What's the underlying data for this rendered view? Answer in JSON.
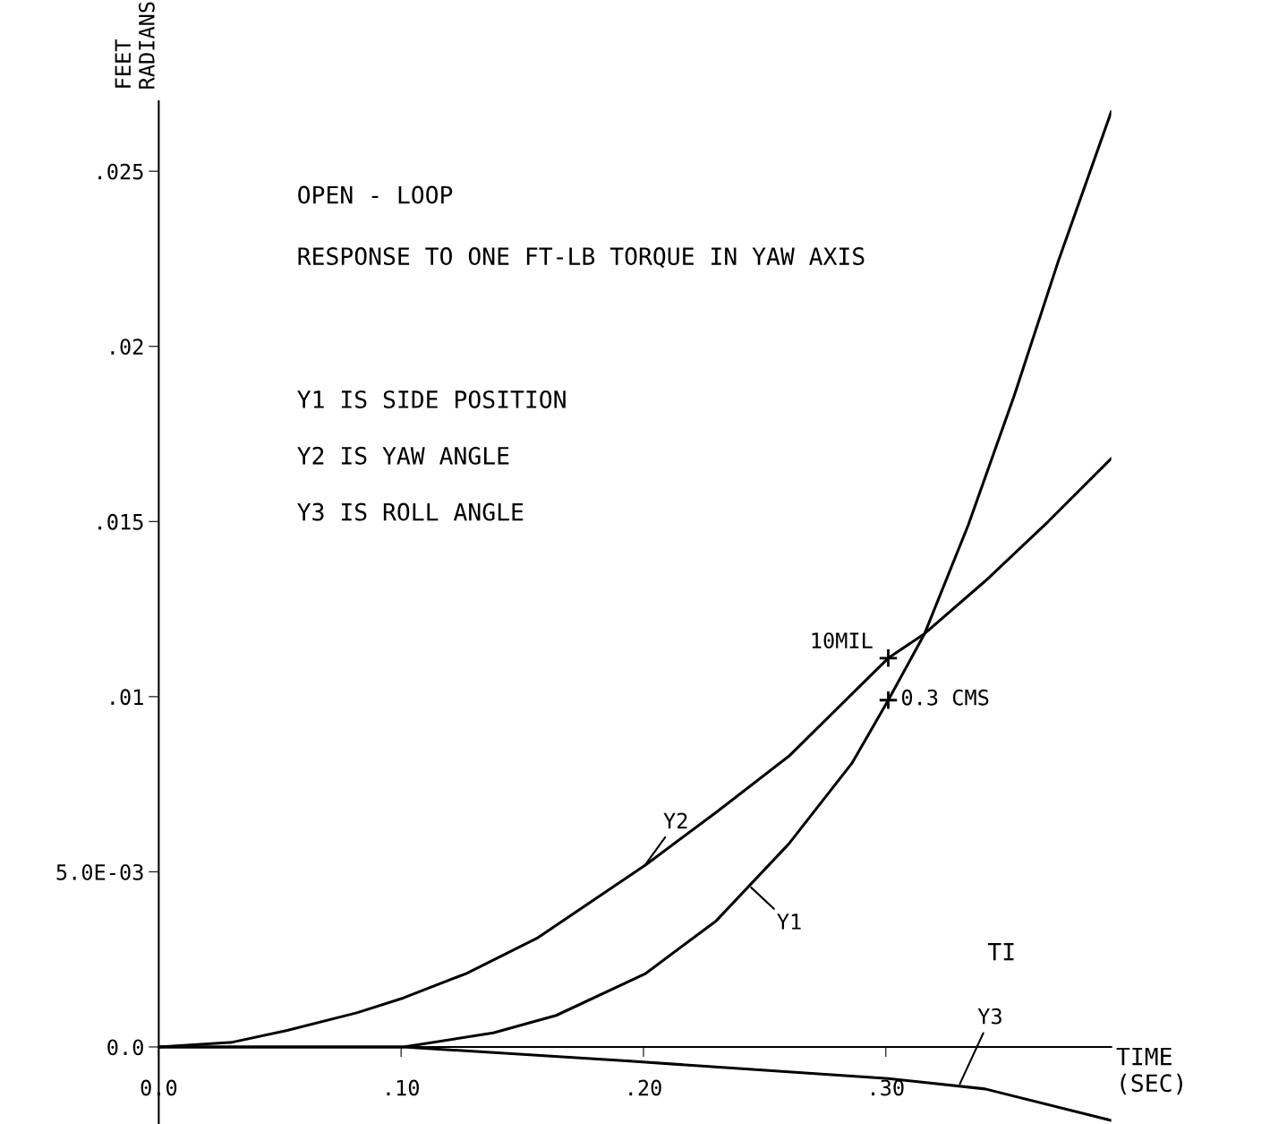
{
  "chart_data": {
    "type": "line",
    "title": "OPEN - LOOP",
    "subtitle": "RESPONSE TO ONE FT-LB TORQUE IN YAW AXIS",
    "ylabel": "FEET\nRADIANS",
    "xlabel": "TIME\n(SEC)",
    "annotations": [
      "Y1 IS SIDE POSITION",
      "Y2 IS YAW ANGLE",
      "Y3 IS ROLL ANGLE",
      {
        "text": "10MIL",
        "x": 0.301,
        "y": 0.0111
      },
      {
        "text": "0.3 CMS",
        "x": 0.301,
        "y": 0.0099
      },
      "TI"
    ],
    "series": [
      {
        "name": "Y1",
        "color": "#000000",
        "x": [
          0,
          0.045,
          0.101,
          0.138,
          0.164,
          0.201,
          0.23,
          0.26,
          0.286,
          0.301,
          0.316,
          0.334,
          0.353,
          0.371,
          0.393
        ],
        "values": [
          0,
          0,
          0,
          0.0004,
          0.0009,
          0.0021,
          0.0036,
          0.0058,
          0.0081,
          0.0099,
          0.0118,
          0.0149,
          0.0186,
          0.0224,
          0.0267
        ]
      },
      {
        "name": "Y2",
        "color": "#000000",
        "x": [
          0,
          0.03,
          0.053,
          0.082,
          0.101,
          0.127,
          0.156,
          0.201,
          0.23,
          0.26,
          0.301,
          0.316,
          0.341,
          0.367,
          0.393
        ],
        "values": [
          0,
          0.00013,
          0.00047,
          0.00098,
          0.0014,
          0.0021,
          0.0031,
          0.0052,
          0.0067,
          0.0083,
          0.0111,
          0.0118,
          0.0133,
          0.015,
          0.0168
        ]
      },
      {
        "name": "Y3",
        "color": "#000000",
        "x": [
          0,
          0.101,
          0.193,
          0.301,
          0.341,
          0.393
        ],
        "values": [
          0,
          0,
          -0.0004,
          -0.0009,
          -0.0012,
          -0.0021
        ]
      }
    ],
    "xlim": [
      0,
      0.393
    ],
    "ylim": [
      -0.0022,
      0.027
    ],
    "xticks": [
      {
        "value": 0,
        "label": "0.0"
      },
      {
        "value": 0.1,
        "label": ".10"
      },
      {
        "value": 0.2,
        "label": ".20"
      },
      {
        "value": 0.3,
        "label": ".30"
      }
    ],
    "yticks": [
      {
        "value": 0,
        "label": "0.0"
      },
      {
        "value": 0.005,
        "label": "5.0E-03"
      },
      {
        "value": 0.01,
        "label": ".01"
      },
      {
        "value": 0.015,
        "label": ".015"
      },
      {
        "value": 0.02,
        "label": ".02"
      },
      {
        "value": 0.025,
        "label": ".025"
      }
    ],
    "marker": "none",
    "line_style": "solid"
  }
}
